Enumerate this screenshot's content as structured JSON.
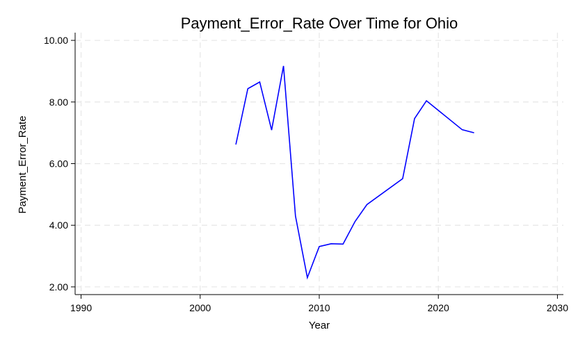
{
  "chart_data": {
    "type": "line",
    "title": "Payment_Error_Rate Over Time for Ohio",
    "xlabel": "Year",
    "ylabel": "Payment_Error_Rate",
    "xlim": [
      1989.5,
      2030.5
    ],
    "ylim": [
      1.75,
      10.25
    ],
    "x_ticks": [
      1990,
      2000,
      2010,
      2020,
      2030
    ],
    "y_ticks": [
      2,
      4,
      6,
      8,
      10
    ],
    "x_tick_labels": [
      "1990",
      "2000",
      "2010",
      "2020",
      "2030"
    ],
    "y_tick_labels": [
      "2.00",
      "4.00",
      "6.00",
      "8.00",
      "10.00"
    ],
    "grid": true,
    "series": [
      {
        "color": "#0000ff",
        "x": [
          2003,
          2004,
          2005,
          2006,
          2007,
          2008,
          2009,
          2010,
          2011,
          2012,
          2013,
          2014,
          2017,
          2018,
          2019,
          2022,
          2023
        ],
        "y": [
          6.62,
          8.43,
          8.65,
          7.09,
          9.17,
          4.3,
          2.3,
          3.31,
          3.4,
          3.39,
          4.12,
          4.67,
          5.51,
          7.46,
          8.04,
          7.1,
          7.0
        ]
      }
    ]
  }
}
